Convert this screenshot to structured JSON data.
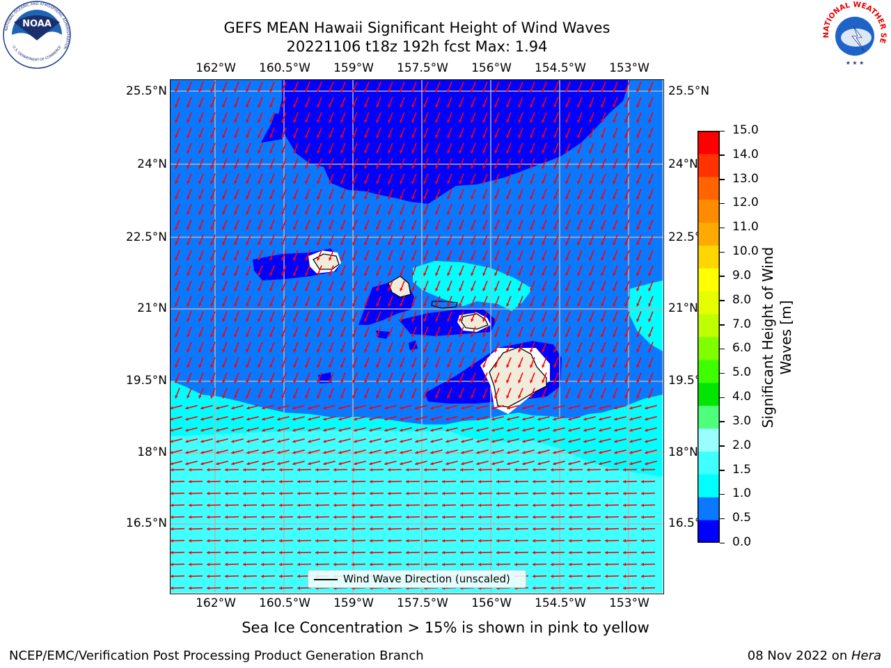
{
  "title": {
    "line1": "GEFS MEAN Hawaii Significant Height of Wind Waves",
    "line2": "20221106 t18z 192h fcst   Max: 1.94"
  },
  "map": {
    "lon_ticks": [
      "162°W",
      "160.5°W",
      "159°W",
      "157.5°W",
      "156°W",
      "154.5°W",
      "153°W"
    ],
    "lat_ticks": [
      "25.5°N",
      "24°N",
      "22.5°N",
      "21°N",
      "19.5°N",
      "18°N",
      "16.5°N"
    ],
    "legend": "Wind Wave Direction (unscaled)",
    "arrow_color": "#ff0000",
    "land_color": "#f0ecdc",
    "grid_color": "#b4b4b4"
  },
  "colorbar": {
    "label_line1": "Significant Height of Wind",
    "label_line2": "Waves [m]",
    "ticks": [
      "0.0",
      "0.5",
      "1.0",
      "1.5",
      "2.0",
      "3.0",
      "4.0",
      "5.0",
      "6.0",
      "7.0",
      "8.0",
      "9.0",
      "10.0",
      "11.0",
      "12.0",
      "13.0",
      "14.0",
      "15.0"
    ],
    "colors": [
      "#0000ff",
      "#0a78ff",
      "#00ffff",
      "#3fffff",
      "#9affff",
      "#4dff7a",
      "#00e600",
      "#3dff00",
      "#7fff00",
      "#bfff00",
      "#e6ff00",
      "#ffff00",
      "#ffd700",
      "#ffaa00",
      "#ff8c00",
      "#ff6400",
      "#ff3200",
      "#ff0000"
    ]
  },
  "logos": {
    "noaa": {
      "center_text": "NOAA",
      "ring_text": "NATIONAL OCEANIC AND ATMOSPHERIC ADMINISTRATION",
      "bottom_text": "U.S. DEPARTMENT OF COMMERCE"
    },
    "nws": {
      "ring_text": "NATIONAL WEATHER SERVICE"
    }
  },
  "footer": {
    "sea_ice_note": "Sea Ice Concentration > 15% is shown in pink to yellow",
    "credit_left": "NCEP/EMC/Verification Post Processing Product Generation Branch",
    "credit_right_prefix": "08 Nov 2022 on ",
    "credit_right_host": "Hera"
  }
}
